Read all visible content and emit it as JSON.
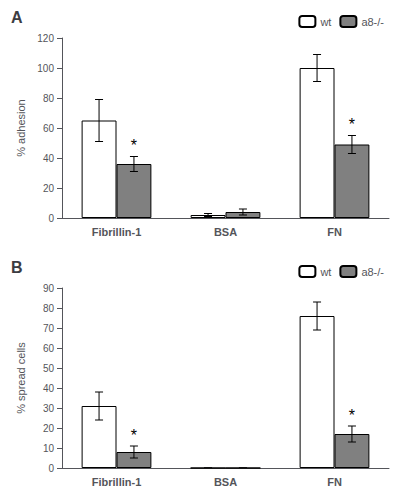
{
  "chart_data": [
    {
      "type": "bar",
      "title": "A",
      "ylabel": "% adhesion",
      "categories": [
        "Fibrillin-1",
        "BSA",
        "FN"
      ],
      "series": [
        {
          "name": "wt",
          "color": "#ffffff",
          "values": [
            65,
            2,
            100
          ],
          "errors": [
            14,
            1,
            9
          ]
        },
        {
          "name": "a8-/-",
          "color": "#808080",
          "values": [
            36,
            4,
            49
          ],
          "errors": [
            5,
            2,
            6
          ]
        }
      ],
      "annotations": [
        {
          "text": "*",
          "x": "Fibrillin-1",
          "series": "a8-/-"
        },
        {
          "text": "*",
          "x": "FN",
          "series": "a8-/-"
        }
      ],
      "ylim": [
        0,
        120
      ],
      "yticks": [
        0,
        20,
        40,
        60,
        80,
        100,
        120
      ],
      "legend": "upper right"
    },
    {
      "type": "bar",
      "title": "B",
      "ylabel": "% spread cells",
      "categories": [
        "Fibrillin-1",
        "BSA",
        "FN"
      ],
      "series": [
        {
          "name": "wt",
          "color": "#ffffff",
          "values": [
            31,
            0,
            76
          ],
          "errors": [
            7,
            0,
            7
          ]
        },
        {
          "name": "a8-/-",
          "color": "#808080",
          "values": [
            8,
            0,
            17
          ],
          "errors": [
            3,
            0,
            4
          ]
        }
      ],
      "annotations": [
        {
          "text": "*",
          "x": "Fibrillin-1",
          "series": "a8-/-"
        },
        {
          "text": "*",
          "x": "FN",
          "series": "a8-/-"
        }
      ],
      "ylim": [
        0,
        90
      ],
      "yticks": [
        0,
        10,
        20,
        30,
        40,
        50,
        60,
        70,
        80,
        90
      ],
      "legend": "upper right"
    }
  ]
}
